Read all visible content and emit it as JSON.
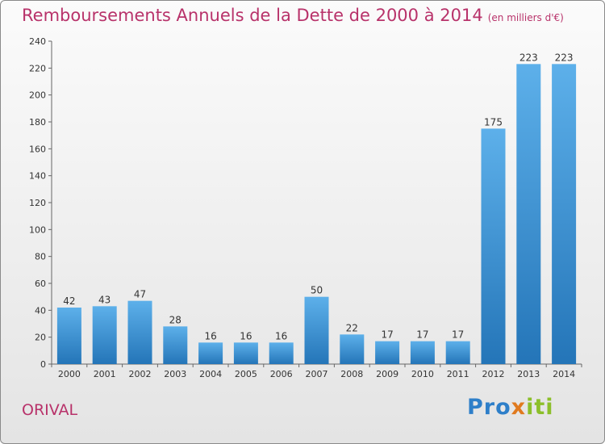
{
  "title": "Remboursements Annuels de la Dette de 2000 à 2014",
  "subtitle": "(en milliers d'€)",
  "commune": "ORIVAL",
  "logo_text": "Proxiti",
  "colors": {
    "title": "#b8326a",
    "bar_top": "#5db0ea",
    "bar_bottom": "#2475b8"
  },
  "chart_data": {
    "type": "bar",
    "categories": [
      "2000",
      "2001",
      "2002",
      "2003",
      "2004",
      "2005",
      "2006",
      "2007",
      "2008",
      "2009",
      "2010",
      "2011",
      "2012",
      "2013",
      "2014"
    ],
    "values": [
      42,
      43,
      47,
      28,
      16,
      16,
      16,
      50,
      22,
      17,
      17,
      17,
      175,
      223,
      223
    ],
    "ylim": [
      0,
      240
    ],
    "yticks": [
      0,
      20,
      40,
      60,
      80,
      100,
      120,
      140,
      160,
      180,
      200,
      220,
      240
    ],
    "grid": false,
    "data_labels": true
  }
}
